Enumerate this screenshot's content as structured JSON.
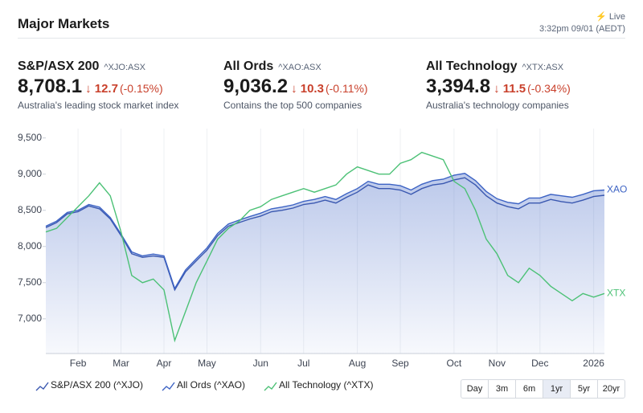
{
  "header": {
    "title": "Major Markets",
    "live": "Live",
    "timestamp": "3:32pm 09/01 (AEDT)"
  },
  "indices": [
    {
      "name": "S&P/ASX 200",
      "code": "^XJO:ASX",
      "price": "8,708.1",
      "change": "12.7",
      "percent": "(-0.15%)",
      "description": "Australia's leading stock market index"
    },
    {
      "name": "All Ords",
      "code": "^XAO:ASX",
      "price": "9,036.2",
      "change": "10.3",
      "percent": "(-0.11%)",
      "description": "Contains the top 500 companies"
    },
    {
      "name": "All Technology",
      "code": "^XTX:ASX",
      "price": "3,394.8",
      "change": "11.5",
      "percent": "(-0.34%)",
      "description": "Australia's technology companies"
    }
  ],
  "ranges": {
    "options": [
      "Day",
      "3m",
      "6m",
      "1yr",
      "5yr",
      "20yr"
    ],
    "selected": "1yr"
  },
  "chart_data": {
    "type": "line",
    "categories": [
      null,
      null,
      null,
      "Feb",
      null,
      null,
      null,
      "Mar",
      null,
      null,
      null,
      "Apr",
      null,
      null,
      null,
      "May",
      null,
      null,
      null,
      null,
      "Jun",
      null,
      null,
      null,
      "Jul",
      null,
      null,
      null,
      null,
      "Aug",
      null,
      null,
      null,
      "Sep",
      null,
      null,
      null,
      null,
      "Oct",
      null,
      null,
      null,
      "Nov",
      null,
      null,
      null,
      "Dec",
      null,
      null,
      null,
      null,
      "2026",
      null
    ],
    "series": [
      {
        "name": "S&P/ASX 200 (^XJO)",
        "color": "#3a58b0",
        "values": [
          8260,
          8330,
          8450,
          8480,
          8560,
          8520,
          8380,
          8150,
          7900,
          7850,
          7870,
          7850,
          7400,
          7650,
          7800,
          7950,
          8150,
          8280,
          8330,
          8380,
          8420,
          8480,
          8500,
          8530,
          8580,
          8600,
          8640,
          8600,
          8680,
          8750,
          8850,
          8800,
          8800,
          8780,
          8720,
          8800,
          8850,
          8870,
          8920,
          8950,
          8850,
          8700,
          8600,
          8550,
          8520,
          8600,
          8600,
          8650,
          8620,
          8600,
          8640,
          8690,
          8708
        ]
      },
      {
        "name": "All Ords (^XAO)",
        "label": "XAO",
        "color": "#3d63c4",
        "values": [
          8280,
          8350,
          8470,
          8500,
          8580,
          8545,
          8400,
          8170,
          7925,
          7870,
          7895,
          7870,
          7420,
          7675,
          7830,
          7980,
          8180,
          8310,
          8365,
          8415,
          8460,
          8520,
          8545,
          8575,
          8625,
          8650,
          8690,
          8650,
          8730,
          8800,
          8900,
          8860,
          8860,
          8840,
          8780,
          8860,
          8910,
          8930,
          8985,
          9010,
          8910,
          8760,
          8660,
          8610,
          8590,
          8670,
          8670,
          8720,
          8700,
          8680,
          8720,
          8770,
          8780
        ]
      },
      {
        "name": "All Technology (^XTX)",
        "label": "XTX",
        "color": "#4cc176",
        "values": [
          8200,
          8250,
          8400,
          8550,
          8700,
          8880,
          8700,
          8200,
          7600,
          7500,
          7550,
          7400,
          6700,
          7100,
          7500,
          7800,
          8100,
          8250,
          8350,
          8500,
          8550,
          8650,
          8700,
          8750,
          8800,
          8750,
          8800,
          8850,
          9000,
          9100,
          9050,
          9000,
          9000,
          9150,
          9200,
          9300,
          9250,
          9200,
          8900,
          8800,
          8500,
          8100,
          7900,
          7600,
          7500,
          7700,
          7600,
          7450,
          7350,
          7250,
          7350,
          7300,
          7350
        ]
      }
    ],
    "area_series": 1,
    "ylim": [
      6520,
      9630
    ],
    "yticks": [
      {
        "value": 7000,
        "label": "7,000"
      },
      {
        "value": 7500,
        "label": "7,500"
      },
      {
        "value": 8000,
        "label": "8,000"
      },
      {
        "value": 8500,
        "label": "8,500"
      },
      {
        "value": 9000,
        "label": "9,000"
      },
      {
        "value": 9500,
        "label": "9,500"
      }
    ]
  }
}
